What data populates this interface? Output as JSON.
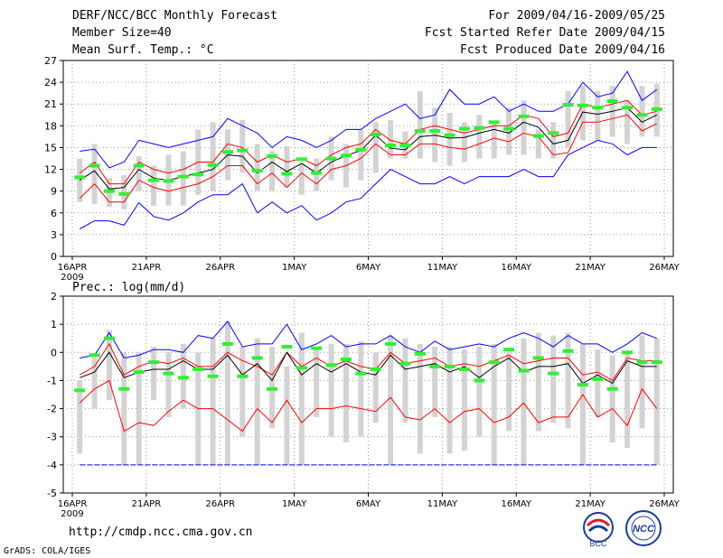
{
  "header": {
    "title": "DERF/NCC/BCC Monthly Forecast",
    "member_size": "Member Size=40",
    "variable": "Mean Surf. Temp.: °C",
    "period": "For 2009/04/16-2009/05/25",
    "start_date": "Fcst Started Refer Date 2009/04/15",
    "produced_date": "Fcst Produced Date 2009/04/16"
  },
  "footer": {
    "url": "http://cmdp.ncc.cma.gov.cn",
    "grads_credit": "GrADS: COLA/IGES",
    "logo_bcc": "BCC",
    "logo_ncc": "NCC"
  },
  "colors": {
    "envelope": "#0000ff",
    "spread": "#ff0000",
    "mean": "#000000",
    "box": "#d3d3d3",
    "marker": "#33ee33",
    "grid": "#999999"
  },
  "chart_data": [
    {
      "type": "line",
      "title": "",
      "ylabel": "Mean Surf. Temp.: °C",
      "ylim": [
        0,
        27
      ],
      "yticks": [
        0,
        3,
        6,
        9,
        12,
        15,
        18,
        21,
        24,
        27
      ],
      "grid": true,
      "xticks": [
        "16APR",
        "21APR",
        "26APR",
        "1MAY",
        "6MAY",
        "11MAY",
        "16MAY",
        "21MAY",
        "26MAY"
      ],
      "xtick_days": [
        0,
        5,
        10,
        15,
        20,
        25,
        30,
        35,
        40
      ],
      "year_label": "2009",
      "days": 40,
      "bar_top": [
        13.5,
        15.5,
        10.8,
        11.2,
        13.8,
        12.5,
        14,
        14.5,
        17.5,
        18.5,
        17.5,
        18.8,
        15.5,
        14.5,
        15.2,
        12.8,
        13.5,
        16.5,
        15.5,
        17.5,
        18.5,
        18.8,
        17.2,
        22.8,
        20.5,
        19.8,
        18.5,
        19.5,
        18.5,
        20.5,
        21.5,
        17.5,
        18.5,
        22.8,
        23.5,
        22.8,
        23.5,
        21.5,
        23.5,
        23.8
      ],
      "bar_bottom": [
        7.5,
        7.2,
        6.8,
        6.5,
        9,
        7,
        7,
        7,
        8.5,
        9,
        10.5,
        11.5,
        9,
        9,
        9.5,
        8.5,
        9,
        10.5,
        9.5,
        10.5,
        11.5,
        13.5,
        13.5,
        13.5,
        13,
        12.5,
        13,
        13.5,
        13.5,
        14,
        14,
        13.5,
        13.5,
        15,
        16,
        16,
        16.5,
        15.5,
        16.5,
        16.5
      ],
      "marker": [
        10.9,
        12.5,
        9,
        8.6,
        12.5,
        10.5,
        10.4,
        11,
        11.3,
        12.6,
        14.4,
        14.6,
        11.8,
        13.8,
        11.4,
        13.4,
        11.5,
        13.5,
        13.9,
        14.7,
        16.8,
        15.3,
        15.3,
        17.3,
        17.3,
        16.7,
        17.6,
        17.7,
        18.5,
        17.6,
        19.3,
        16.6,
        17,
        20.9,
        20.8,
        20.5,
        21.4,
        20.5,
        19.5,
        20.3
      ],
      "series": [
        {
          "name": "ens_max",
          "color": "#0000ff",
          "values": [
            3.8,
            4.9,
            4.9,
            4.3,
            7.4,
            5.5,
            5,
            6,
            7.5,
            8.5,
            8.5,
            10,
            6,
            7.5,
            6,
            7,
            5,
            6,
            7.5,
            8,
            10,
            12,
            11,
            10,
            10,
            11,
            10,
            11,
            11,
            11,
            12,
            11,
            11,
            14,
            15,
            16,
            15.5,
            14,
            15,
            15
          ]
        },
        {
          "name": "ens_max_upper",
          "color": "#0000ff",
          "values": [
            14.5,
            14.8,
            12.2,
            13,
            16,
            15.5,
            15,
            15.5,
            16,
            16.5,
            19,
            18,
            17,
            15,
            16.5,
            16,
            15,
            16,
            17.5,
            17.5,
            19,
            20,
            21,
            19,
            19.5,
            23,
            21,
            21,
            22,
            20,
            21,
            20,
            20,
            21,
            24,
            22,
            22.5,
            25.5,
            21.5,
            23
          ]
        },
        {
          "name": "spread_upper",
          "color": "#ff0000",
          "values": [
            11.5,
            13,
            10,
            10,
            13,
            12,
            11.5,
            12,
            13,
            13,
            15.5,
            15,
            13,
            14,
            13,
            13.5,
            12.5,
            14,
            15,
            15.5,
            17.5,
            16,
            15.5,
            17.5,
            18,
            17.5,
            17,
            17.5,
            18,
            18,
            19.5,
            19,
            16.5,
            17,
            21,
            20.5,
            21,
            21.5,
            19.5,
            20
          ]
        },
        {
          "name": "ensemble_mean",
          "color": "#000000",
          "values": [
            10.5,
            11.8,
            9.3,
            9.5,
            12,
            10.8,
            10.5,
            11,
            11.5,
            12,
            14,
            13.8,
            11.5,
            13,
            11.7,
            12.8,
            11.5,
            13,
            13.9,
            14.6,
            16.7,
            14.9,
            14.7,
            16.5,
            16.7,
            16.3,
            16.4,
            17,
            17.5,
            17,
            18.5,
            17.8,
            15.5,
            16,
            19.9,
            19.6,
            20,
            20.5,
            18.5,
            19.5
          ]
        },
        {
          "name": "spread_lower",
          "color": "#ff0000",
          "values": [
            8,
            10,
            7.5,
            7.5,
            10.5,
            9.5,
            9,
            9.5,
            10,
            11,
            12.5,
            12.5,
            10,
            11.5,
            9.5,
            11.5,
            10,
            12,
            12.5,
            13.5,
            15.5,
            14,
            14,
            15.5,
            15.5,
            15,
            14.8,
            15.5,
            16.3,
            15.8,
            17,
            16.5,
            14,
            14.3,
            18.5,
            18.5,
            19,
            19.5,
            17.3,
            18.3
          ]
        }
      ]
    },
    {
      "type": "line",
      "title": "",
      "ylabel": "Prec.: log(mm/d)",
      "ylim": [
        -5,
        2
      ],
      "yticks": [
        -5,
        -4,
        -3,
        -2,
        -1,
        0,
        1,
        2
      ],
      "grid": true,
      "xticks": [
        "16APR",
        "21APR",
        "26APR",
        "1MAY",
        "6MAY",
        "11MAY",
        "16MAY",
        "21MAY",
        "26MAY"
      ],
      "xtick_days": [
        0,
        5,
        10,
        15,
        20,
        25,
        30,
        35,
        40
      ],
      "year_label": "2009",
      "days": 40,
      "bar_top": [
        -1,
        -0.2,
        0.8,
        0,
        0,
        0.2,
        0,
        0.3,
        0,
        0.5,
        1.1,
        0.2,
        0.5,
        0.2,
        -0.5,
        0.7,
        0.1,
        0.3,
        0.3,
        0.4,
        0,
        0.6,
        0.5,
        0.3,
        0.2,
        0.2,
        0.1,
        0.2,
        0.3,
        0,
        0.5,
        0.7,
        0.6,
        0.7,
        0.3,
        0.1,
        -0.1,
        0,
        0.6,
        0.5
      ],
      "bar_bottom": [
        -3.6,
        -2,
        -1.7,
        -4,
        -4,
        -1.7,
        -2.3,
        -2,
        -4,
        -4,
        -4,
        -3,
        -4,
        -2.7,
        -4,
        -4,
        -2.3,
        -3,
        -3.2,
        -3,
        -2.5,
        -4,
        -2.5,
        -3.6,
        -2.3,
        -3.6,
        -3.5,
        -3,
        -4,
        -2.8,
        -4,
        -2.8,
        -2.5,
        -2.7,
        -4,
        -2.3,
        -3.2,
        -3.4,
        -2.7,
        -4
      ],
      "marker": [
        -1.35,
        -0.1,
        0.5,
        -1.3,
        -0.7,
        -0.35,
        -0.75,
        -0.9,
        -0.6,
        -0.85,
        0.3,
        -0.85,
        -0.2,
        -1.3,
        0.2,
        -0.55,
        0.15,
        -0.45,
        -0.25,
        -0.75,
        -0.6,
        0.3,
        -0.4,
        -0.05,
        -0.5,
        -0.5,
        -0.6,
        -1,
        -0.35,
        0.1,
        -0.65,
        -0.2,
        -0.75,
        0.05,
        -1.15,
        -0.95,
        -1.3,
        0,
        -0.35,
        -0.35
      ],
      "series": [
        {
          "name": "baseline",
          "color": "#0000ff",
          "values": [
            -4,
            -4,
            -4,
            -4,
            -4,
            -4,
            -4,
            -4,
            -4,
            -4,
            -4,
            -4,
            -4,
            -4,
            -4,
            -4,
            -4,
            -4,
            -4,
            -4,
            -4,
            -4,
            -4,
            -4,
            -4,
            -4,
            -4,
            -4,
            -4,
            -4,
            -4,
            -4,
            -4,
            -4,
            -4,
            -4,
            -4,
            -4,
            -4,
            -4
          ]
        },
        {
          "name": "ens_upper",
          "color": "#0000ff",
          "values": [
            -0.2,
            -0.1,
            0.7,
            -0.2,
            -0.1,
            0.1,
            0.1,
            0,
            0.6,
            0.5,
            1.1,
            0.2,
            0.3,
            0.3,
            1,
            0.1,
            0.3,
            0.6,
            0.2,
            0.3,
            0.3,
            0.6,
            0.2,
            0,
            0.4,
            0.1,
            0.2,
            0.3,
            0.2,
            0.5,
            0.7,
            0.5,
            0.2,
            0.6,
            0.3,
            0.3,
            0,
            0.3,
            0.7,
            0.5
          ]
        },
        {
          "name": "spread_upper",
          "color": "#ff0000",
          "values": [
            -0.8,
            -0.5,
            0.3,
            -0.8,
            -0.5,
            -0.3,
            -0.4,
            -0.2,
            -0.5,
            -0.5,
            0,
            -0.3,
            -0.5,
            -0.8,
            0,
            -0.5,
            -0.2,
            -0.5,
            -0.3,
            -0.5,
            -0.6,
            0,
            -0.4,
            -0.3,
            -0.2,
            -0.5,
            -0.4,
            -0.5,
            -0.3,
            -0.1,
            -0.4,
            -0.3,
            -0.2,
            -0.2,
            -0.8,
            -0.7,
            -1,
            -0.2,
            -0.3,
            -0.3
          ]
        },
        {
          "name": "ensemble_mean",
          "color": "#000000",
          "values": [
            -0.9,
            -0.7,
            0,
            -0.9,
            -0.7,
            -0.6,
            -0.6,
            -0.3,
            -0.6,
            -0.6,
            -0.1,
            -0.8,
            -0.4,
            -1,
            0,
            -0.8,
            -0.4,
            -0.7,
            -0.4,
            -0.7,
            -0.8,
            -0.1,
            -0.6,
            -0.5,
            -0.4,
            -0.7,
            -0.5,
            -0.9,
            -0.5,
            -0.2,
            -0.7,
            -0.5,
            -0.5,
            -0.4,
            -1.1,
            -0.8,
            -1.1,
            -0.3,
            -0.5,
            -0.5
          ]
        },
        {
          "name": "spread_lower",
          "color": "#ff0000",
          "values": [
            -1.8,
            -1.3,
            -1,
            -2.8,
            -2.5,
            -2.6,
            -2.1,
            -1.7,
            -2,
            -2,
            -2.4,
            -2.8,
            -2,
            -2.5,
            -1.7,
            -2.5,
            -2,
            -2,
            -1.9,
            -2,
            -2.1,
            -1.6,
            -2.3,
            -2.4,
            -2,
            -2.5,
            -2.1,
            -2,
            -2.5,
            -2.3,
            -1.8,
            -2.5,
            -2.3,
            -2.3,
            -1.5,
            -2.3,
            -2,
            -2.6,
            -1.3,
            -2
          ]
        }
      ]
    }
  ]
}
